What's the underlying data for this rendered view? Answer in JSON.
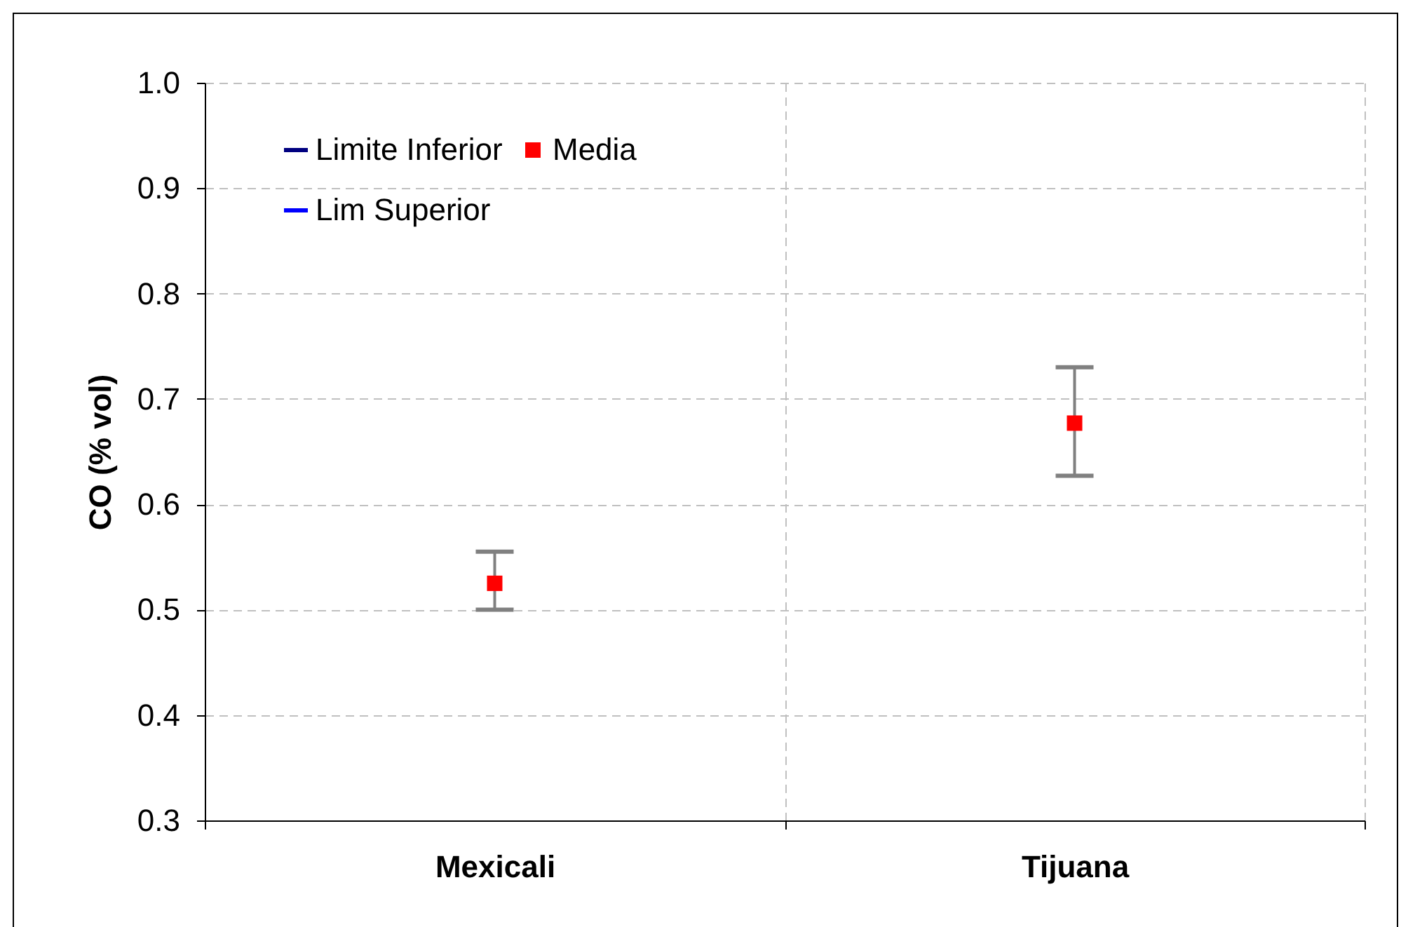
{
  "chart_data": {
    "type": "scatter",
    "ylabel": "CO (% vol)",
    "categories": [
      "Mexicali",
      "Tijuana"
    ],
    "series": [
      {
        "name": "Limite Inferior",
        "color": "#000080",
        "values": [
          null,
          null
        ]
      },
      {
        "name": "Media",
        "color": "#ff0000",
        "marker": "square",
        "values": [
          0.525,
          0.677
        ],
        "errors": [
          [
            0.5,
            0.555
          ],
          [
            0.627,
            0.73
          ]
        ]
      },
      {
        "name": "Lim Superior",
        "color": "#0000ff",
        "values": [
          null,
          null
        ]
      }
    ],
    "ylim": [
      0.3,
      1.0
    ],
    "yticks": [
      0.3,
      0.4,
      0.5,
      0.6,
      0.7,
      0.8,
      0.9,
      {
        "value": 1,
        "label": "1.0"
      }
    ],
    "grid": true,
    "legend": "top left"
  }
}
